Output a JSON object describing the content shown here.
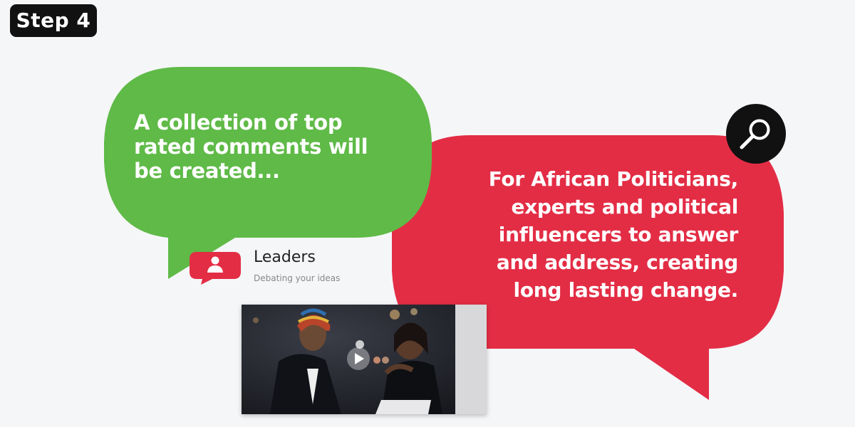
{
  "step": {
    "label": "Step 4"
  },
  "green_bubble": {
    "lines": [
      "A collection of top",
      "rated comments will",
      "be created..."
    ],
    "color": "#5fba47"
  },
  "red_bubble": {
    "lines": [
      "For African Politicians,",
      "experts and political",
      "influencers to answer",
      "and address, creating",
      "long lasting change."
    ],
    "color": "#e32d45"
  },
  "search": {
    "icon": "search-icon"
  },
  "leaders": {
    "title": "Leaders",
    "subtitle": "Debating your ideas",
    "icon": "user-chat-icon"
  },
  "video": {
    "icon": "play-icon"
  }
}
